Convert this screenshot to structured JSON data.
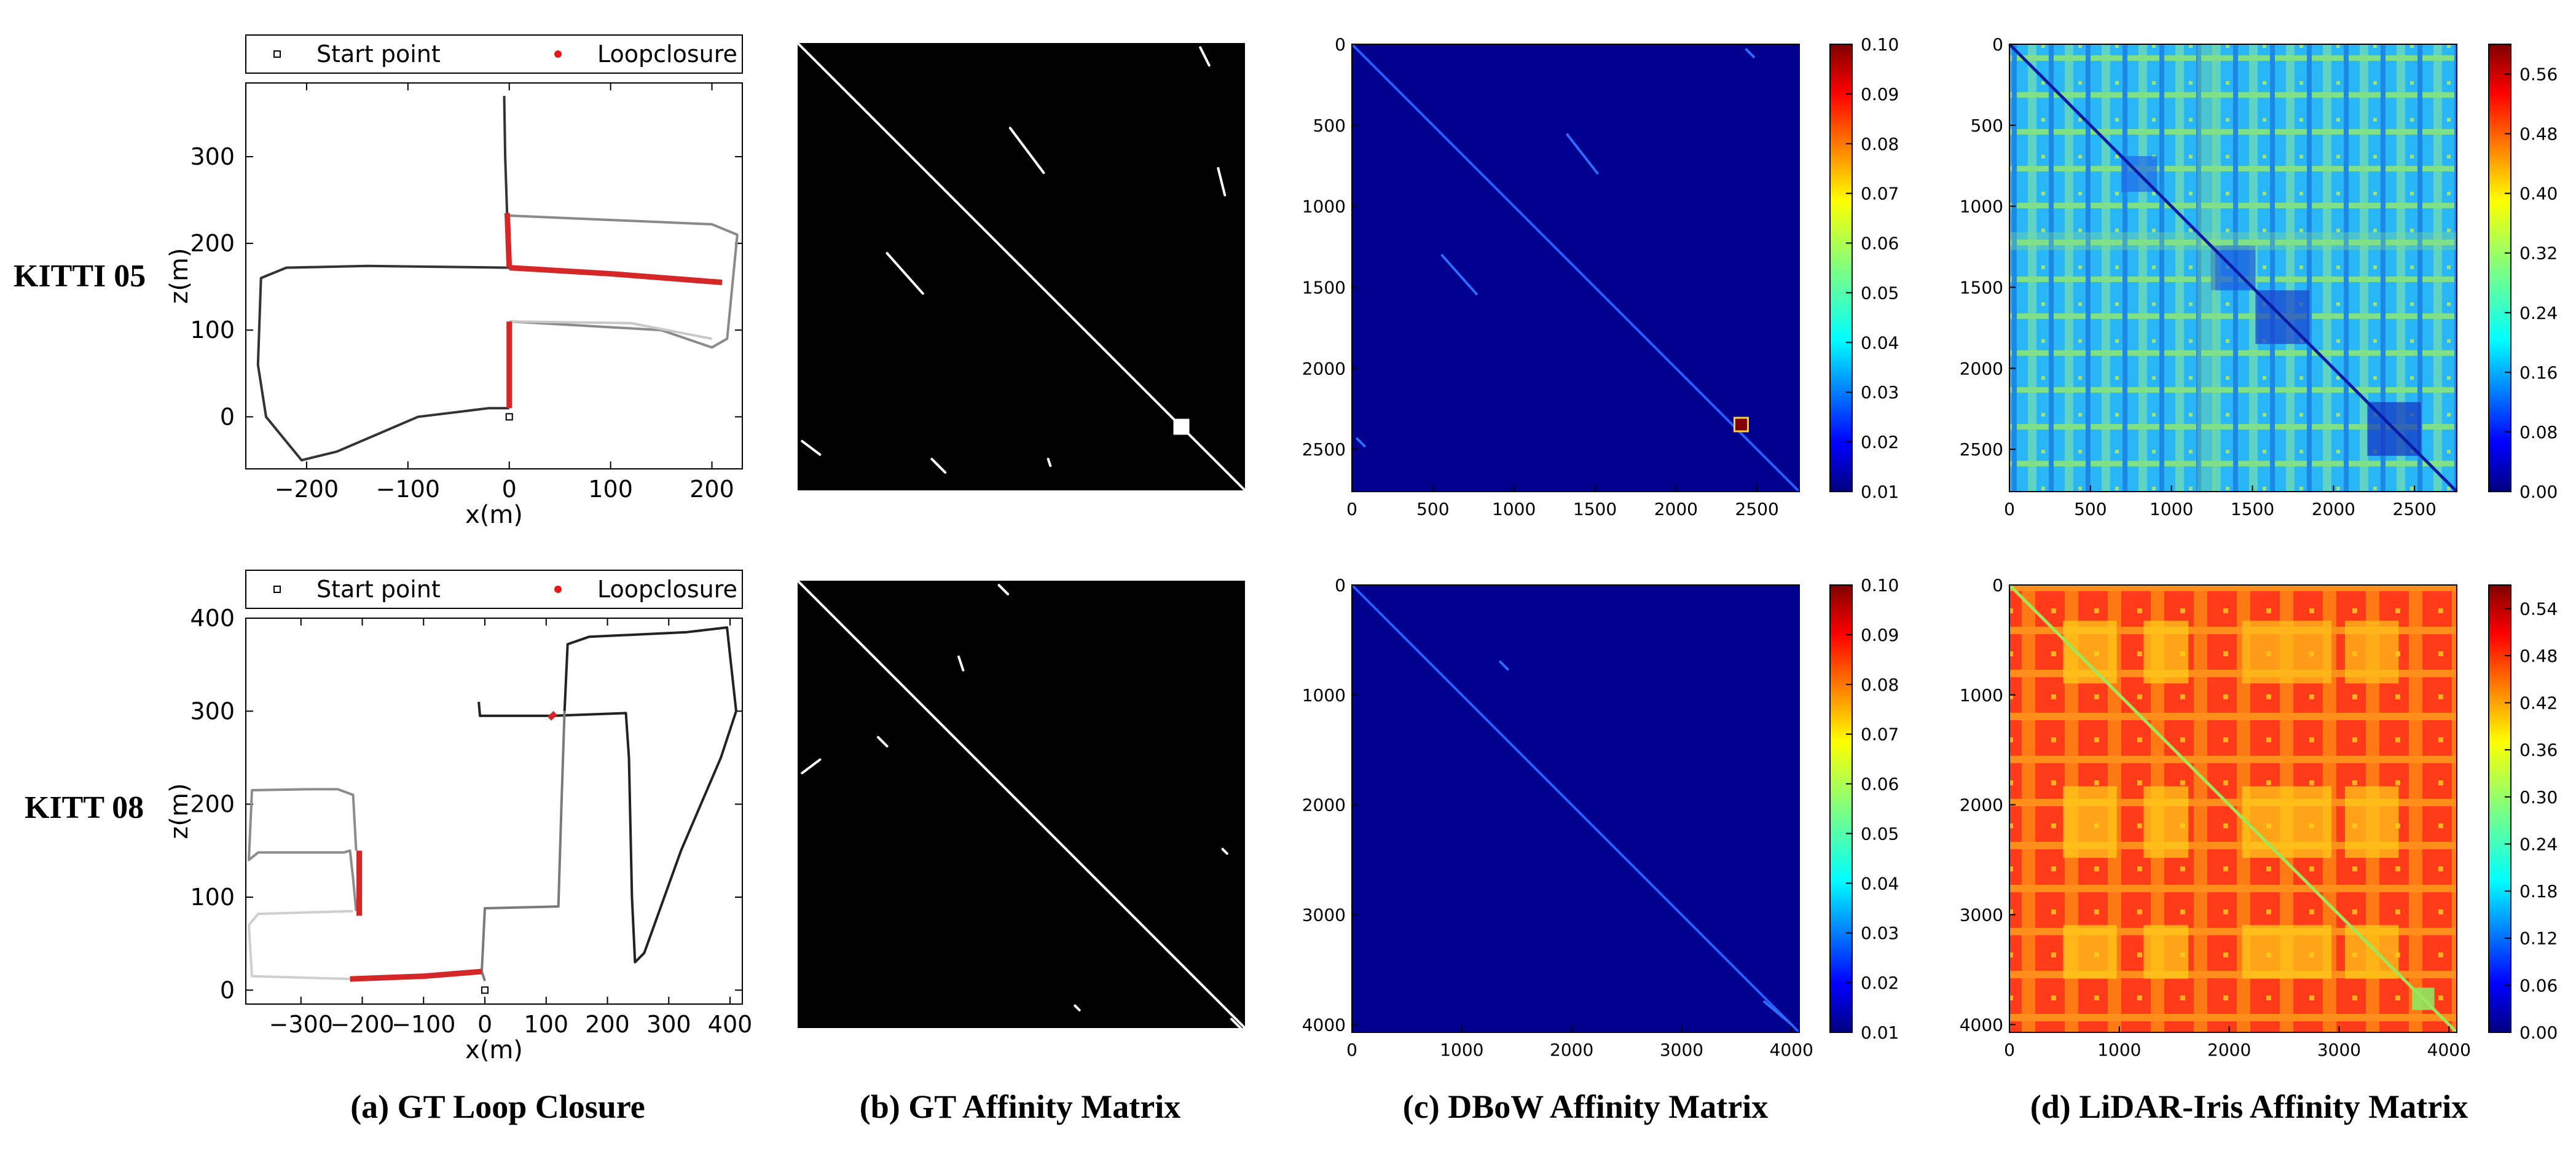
{
  "rows": [
    {
      "label": "KITTI 05"
    },
    {
      "label": "KITT 08"
    }
  ],
  "captions": [
    "(a) GT Loop Closure",
    "(b) GT Affinity Matrix",
    "(c) DBoW Affinity Matrix",
    "(d) LiDAR-Iris Affinity Matrix"
  ],
  "legend": {
    "start": "Start point",
    "loop": "Loopclosure"
  },
  "chart_data": [
    {
      "type": "line",
      "panel": "trajectory-05",
      "xlabel": "x(m)",
      "ylabel": "z(m)",
      "xlim": [
        -260,
        230
      ],
      "ylim": [
        -60,
        385
      ],
      "xticks": [
        -200,
        -100,
        0,
        100,
        200
      ],
      "yticks": [
        0,
        100,
        200,
        300
      ],
      "series": [
        {
          "name": "Start point",
          "marker": "square",
          "x": [
            0
          ],
          "y": [
            0
          ]
        },
        {
          "name": "Loopclosure",
          "color": "#d62728",
          "x": [
            0,
            210
          ],
          "y": [
            172,
            155
          ]
        }
      ]
    },
    {
      "type": "heatmap",
      "panel": "gt-05",
      "colormap": "binary",
      "axes": false
    },
    {
      "type": "heatmap",
      "panel": "dbow-05",
      "colormap": "jet",
      "xlim": [
        0,
        2761
      ],
      "ylim": [
        0,
        2761
      ],
      "ticks": [
        0,
        500,
        1000,
        1500,
        2000,
        2500
      ],
      "colorbar": {
        "min": 0.01,
        "max": 0.1,
        "ticks": [
          "0.01",
          "0.02",
          "0.03",
          "0.04",
          "0.05",
          "0.06",
          "0.07",
          "0.08",
          "0.09",
          "0.10"
        ]
      }
    },
    {
      "type": "heatmap",
      "panel": "iris-05",
      "colormap": "jet",
      "xlim": [
        0,
        2761
      ],
      "ylim": [
        0,
        2761
      ],
      "ticks": [
        0,
        500,
        1000,
        1500,
        2000,
        2500
      ],
      "colorbar": {
        "min": 0.0,
        "max": 0.6,
        "ticks": [
          "0.00",
          "0.08",
          "0.16",
          "0.24",
          "0.32",
          "0.40",
          "0.48",
          "0.56"
        ]
      }
    },
    {
      "type": "line",
      "panel": "trajectory-08",
      "xlabel": "x(m)",
      "ylabel": "z(m)",
      "xlim": [
        -390,
        420
      ],
      "ylim": [
        -15,
        400
      ],
      "xticks": [
        -300,
        -200,
        -100,
        0,
        100,
        200,
        300,
        400
      ],
      "yticks": [
        0,
        100,
        200,
        300,
        400
      ],
      "series": [
        {
          "name": "Start point",
          "marker": "square",
          "x": [
            0
          ],
          "y": [
            0
          ]
        },
        {
          "name": "Loopclosure",
          "color": "#d62728",
          "x": [
            -200,
            110
          ],
          "y": [
            85,
            295
          ]
        }
      ]
    },
    {
      "type": "heatmap",
      "panel": "gt-08",
      "colormap": "binary",
      "axes": false
    },
    {
      "type": "heatmap",
      "panel": "dbow-08",
      "colormap": "jet",
      "xlim": [
        0,
        4071
      ],
      "ylim": [
        0,
        4071
      ],
      "ticks": [
        0,
        1000,
        2000,
        3000,
        4000
      ],
      "colorbar": {
        "min": 0.01,
        "max": 0.1,
        "ticks": [
          "0.01",
          "0.02",
          "0.03",
          "0.04",
          "0.05",
          "0.06",
          "0.07",
          "0.08",
          "0.09",
          "0.10"
        ]
      }
    },
    {
      "type": "heatmap",
      "panel": "iris-08",
      "colormap": "jet",
      "xlim": [
        0,
        4071
      ],
      "ylim": [
        0,
        4071
      ],
      "ticks": [
        0,
        1000,
        2000,
        3000,
        4000
      ],
      "colorbar": {
        "min": 0.0,
        "max": 0.57,
        "ticks": [
          "0.00",
          "0.06",
          "0.12",
          "0.18",
          "0.24",
          "0.30",
          "0.36",
          "0.42",
          "0.48",
          "0.54"
        ]
      }
    }
  ]
}
